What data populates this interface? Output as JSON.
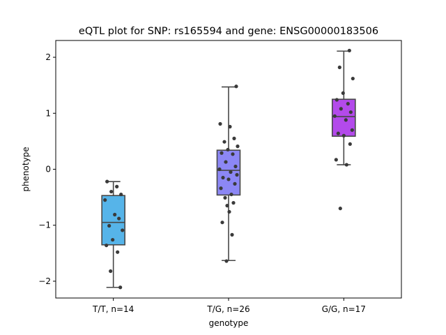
{
  "chart_data": {
    "type": "box",
    "title": "eQTL plot for SNP: rs165594 and gene: ENSG00000183506",
    "xlabel": "genotype",
    "ylabel": "phenotype",
    "ylim": [
      -2.3,
      2.3
    ],
    "yticks": [
      -2,
      -1,
      0,
      1,
      2
    ],
    "ytick_labels": [
      "−2",
      "−1",
      "0",
      "1",
      "2"
    ],
    "grid": false,
    "categories": [
      "T/T, n=14",
      "T/G, n=26",
      "G/G, n=17"
    ],
    "boxes": [
      {
        "category": "T/T, n=14",
        "color": "#56B4E9",
        "whisker_low": -2.11,
        "q1": -1.35,
        "median": -0.95,
        "q3": -0.47,
        "whisker_high": -0.22
      },
      {
        "category": "T/G, n=26",
        "color": "#8C87F5",
        "whisker_low": -1.63,
        "q1": -0.46,
        "median": -0.02,
        "q3": 0.34,
        "whisker_high": 1.47
      },
      {
        "category": "G/G, n=17",
        "color": "#B34AEB",
        "whisker_low": 0.08,
        "q1": 0.59,
        "median": 0.94,
        "q3": 1.25,
        "whisker_high": 2.11
      }
    ],
    "points": [
      {
        "category": "T/T, n=14",
        "values": [
          -0.22,
          -0.31,
          -0.4,
          -0.45,
          -0.55,
          -0.81,
          -0.88,
          -1.01,
          -1.09,
          -1.26,
          -1.36,
          -1.48,
          -1.82,
          -2.11
        ]
      },
      {
        "category": "T/G, n=26",
        "values": [
          1.48,
          0.81,
          0.76,
          0.55,
          0.49,
          0.41,
          0.35,
          0.29,
          0.27,
          0.13,
          0.05,
          0.0,
          -0.05,
          -0.1,
          -0.15,
          -0.18,
          -0.26,
          -0.34,
          -0.45,
          -0.51,
          -0.6,
          -0.65,
          -0.76,
          -0.95,
          -1.17,
          -1.64
        ]
      },
      {
        "category": "G/G, n=17",
        "values": [
          2.12,
          1.82,
          1.62,
          1.36,
          1.24,
          1.17,
          1.08,
          1.02,
          0.95,
          0.88,
          0.7,
          0.64,
          0.6,
          0.45,
          0.17,
          0.08,
          -0.7
        ]
      }
    ]
  }
}
